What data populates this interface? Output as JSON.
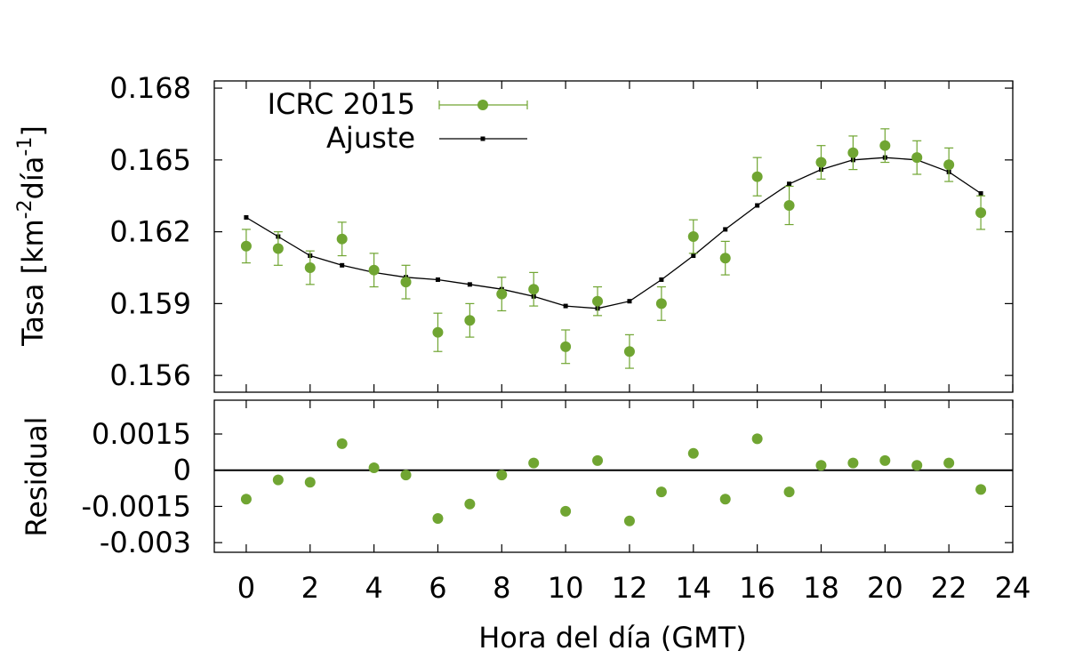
{
  "chart_data": {
    "type": "scatter",
    "x_label": "Hora del día (GMT)",
    "xlim": [
      -1,
      24
    ],
    "xticks": [
      0,
      2,
      4,
      6,
      8,
      10,
      12,
      14,
      16,
      18,
      20,
      22,
      24
    ],
    "top_panel": {
      "ylabel_main": "Tasa [km",
      "ylabel_sup1": "-2",
      "ylabel_mid": "día",
      "ylabel_sup2": "-1",
      "ylabel_end": "]",
      "ylim": [
        0.1553,
        0.1683
      ],
      "yticks": [
        0.156,
        0.159,
        0.162,
        0.165,
        0.168
      ],
      "ytick_labels": [
        "0.156",
        "0.159",
        "0.162",
        "0.165",
        "0.168"
      ],
      "legend_position": "top-left",
      "series": [
        {
          "name": "ICRC 2015",
          "kind": "points-with-errorbars",
          "color": "#70a532",
          "x": [
            0,
            1,
            2,
            3,
            4,
            5,
            6,
            7,
            8,
            9,
            10,
            11,
            12,
            13,
            14,
            15,
            16,
            17,
            18,
            19,
            20,
            21,
            22,
            23
          ],
          "y": [
            0.1614,
            0.1613,
            0.1605,
            0.1617,
            0.1604,
            0.1599,
            0.1578,
            0.1583,
            0.1594,
            0.1596,
            0.1572,
            0.1591,
            0.157,
            0.159,
            0.1618,
            0.1609,
            0.1643,
            0.1631,
            0.1649,
            0.1653,
            0.1656,
            0.1651,
            0.1648,
            0.1628
          ],
          "err": [
            0.0007,
            0.0007,
            0.0007,
            0.0007,
            0.0007,
            0.0007,
            0.0008,
            0.0007,
            0.0007,
            0.0007,
            0.0007,
            0.0006,
            0.0007,
            0.0007,
            0.0007,
            0.0007,
            0.0008,
            0.0008,
            0.0007,
            0.0007,
            0.0007,
            0.0007,
            0.0007,
            0.0007
          ]
        },
        {
          "name": "Ajuste",
          "kind": "line-with-markers",
          "color": "#000000",
          "x": [
            0,
            1,
            2,
            3,
            4,
            5,
            6,
            7,
            8,
            9,
            10,
            11,
            12,
            13,
            14,
            15,
            16,
            17,
            18,
            19,
            20,
            21,
            22,
            23
          ],
          "y": [
            0.1626,
            0.1618,
            0.161,
            0.1606,
            0.1603,
            0.1601,
            0.16,
            0.1598,
            0.1596,
            0.1593,
            0.1589,
            0.1588,
            0.1591,
            0.16,
            0.161,
            0.1621,
            0.1631,
            0.164,
            0.1646,
            0.165,
            0.1651,
            0.165,
            0.1645,
            0.1636
          ]
        }
      ]
    },
    "bottom_panel": {
      "ylabel": "Residual",
      "ylim": [
        -0.0034,
        0.0029
      ],
      "yticks": [
        -0.003,
        -0.0015,
        0,
        0.0015
      ],
      "ytick_labels": [
        "-0.003",
        "-0.0015",
        "0",
        "0.0015"
      ],
      "zero_line": true,
      "series": [
        {
          "name": "Residual",
          "kind": "points",
          "color": "#70a532",
          "x": [
            0,
            1,
            2,
            3,
            4,
            5,
            6,
            7,
            8,
            9,
            10,
            11,
            12,
            13,
            14,
            15,
            16,
            17,
            18,
            19,
            20,
            21,
            22,
            23
          ],
          "y": [
            -0.0012,
            -0.0004,
            -0.0005,
            0.0011,
            0.0001,
            -0.0002,
            -0.002,
            -0.0014,
            -0.0002,
            0.0003,
            -0.0017,
            0.0004,
            -0.0021,
            -0.0009,
            0.0007,
            -0.0012,
            0.0013,
            -0.0009,
            0.0002,
            0.0003,
            0.0004,
            0.0002,
            0.0003,
            -0.0008
          ]
        }
      ]
    }
  }
}
